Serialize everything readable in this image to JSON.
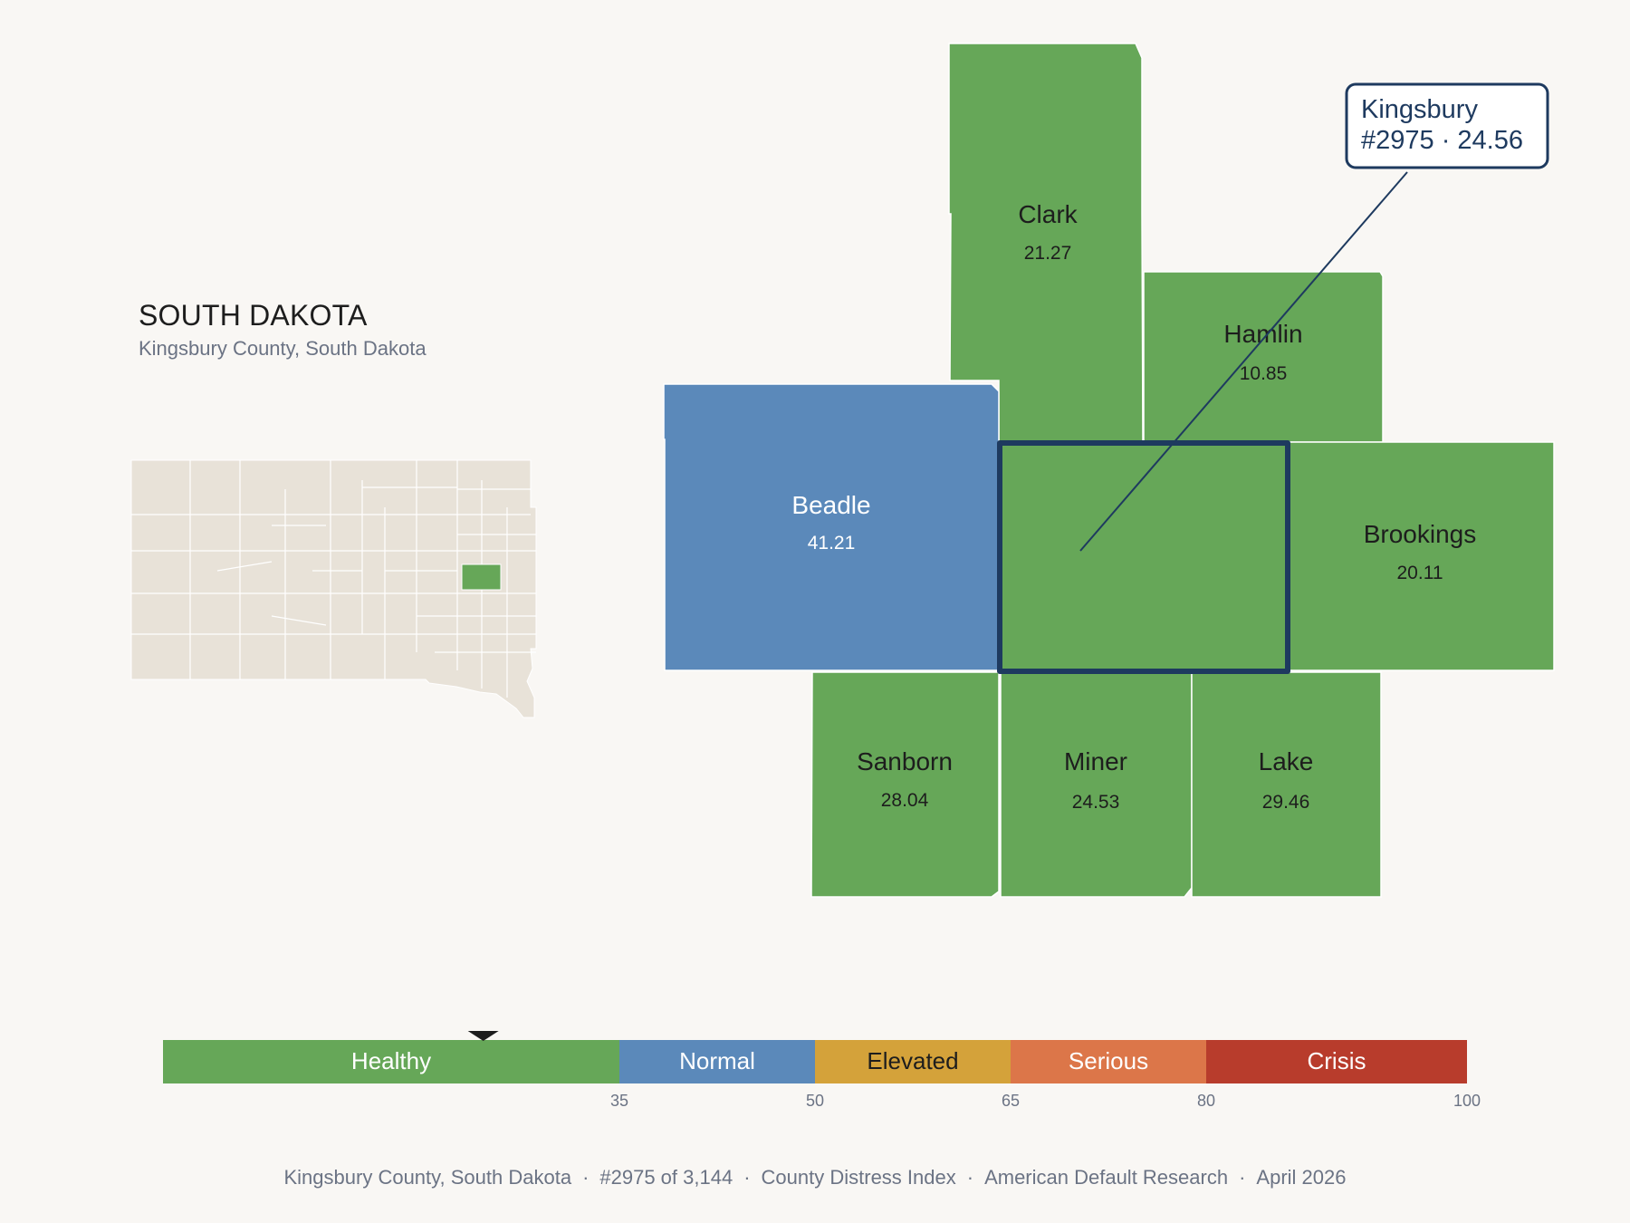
{
  "header": {
    "state_name": "SOUTH DAKOTA",
    "county_full": "Kingsbury County, South Dakota"
  },
  "focus": {
    "name": "Kingsbury",
    "callout_line": "#2975 · 24.56",
    "rank": 2975,
    "score": 24.56,
    "category": "Healthy"
  },
  "neighbors": [
    {
      "key": "clark",
      "name": "Clark",
      "score": "21.27",
      "category": "Healthy"
    },
    {
      "key": "hamlin",
      "name": "Hamlin",
      "score": "10.85",
      "category": "Healthy"
    },
    {
      "key": "beadle",
      "name": "Beadle",
      "score": "41.21",
      "category": "Normal"
    },
    {
      "key": "brookings",
      "name": "Brookings",
      "score": "20.11",
      "category": "Healthy"
    },
    {
      "key": "sanborn",
      "name": "Sanborn",
      "score": "28.04",
      "category": "Healthy"
    },
    {
      "key": "miner",
      "name": "Miner",
      "score": "24.53",
      "category": "Healthy"
    },
    {
      "key": "lake",
      "name": "Lake",
      "score": "29.46",
      "category": "Healthy"
    }
  ],
  "scale": {
    "min": 0,
    "max": 100,
    "marker_value": 24.56,
    "bands": [
      {
        "label": "Healthy",
        "from": 0,
        "to": 35,
        "color": "#66a758",
        "text_color": "#ffffff"
      },
      {
        "label": "Normal",
        "from": 35,
        "to": 50,
        "color": "#5b89ba",
        "text_color": "#ffffff"
      },
      {
        "label": "Elevated",
        "from": 50,
        "to": 65,
        "color": "#d4a23a",
        "text_color": "#1d1d1d"
      },
      {
        "label": "Serious",
        "from": 65,
        "to": 80,
        "color": "#dc7649",
        "text_color": "#ffffff"
      },
      {
        "label": "Crisis",
        "from": 80,
        "to": 100,
        "color": "#b83c2c",
        "text_color": "#ffffff"
      }
    ],
    "ticks": [
      "35",
      "50",
      "65",
      "80",
      "100"
    ]
  },
  "colors": {
    "healthy": "#66a758",
    "normal": "#5b89ba",
    "state_fill": "#e8e2d8",
    "focus_outline": "#1e3a5f",
    "callout_text": "#1e3a5f"
  },
  "footer": {
    "county": "Kingsbury County, South Dakota",
    "rank": "#2975 of 3,144",
    "index": "County Distress Index",
    "publisher": "American Default Research",
    "date": "April 2026"
  }
}
